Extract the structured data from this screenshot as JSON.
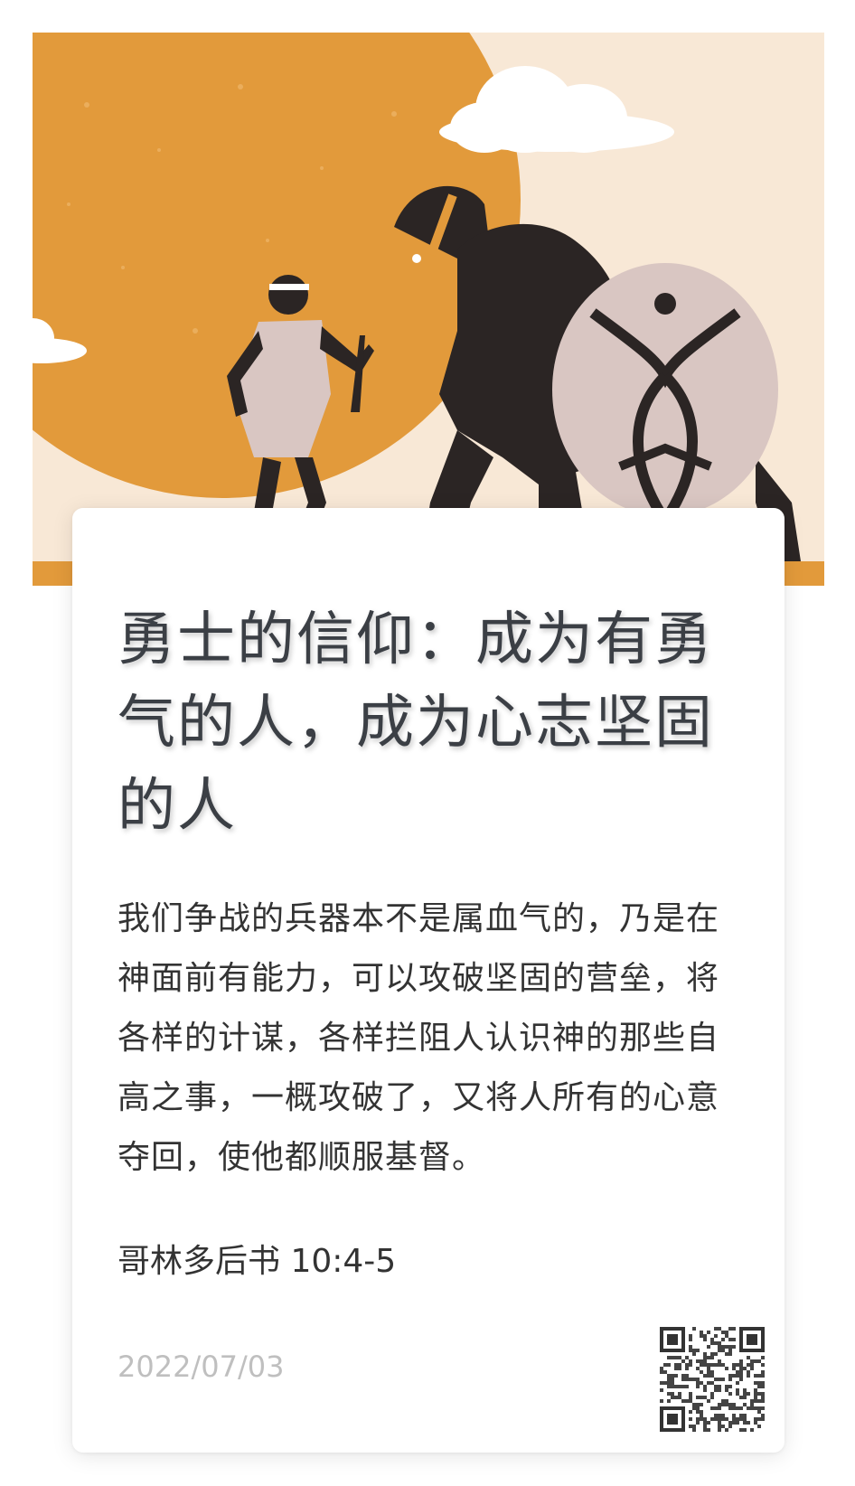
{
  "title": "勇士的信仰：成为有勇气的人，成为心志坚固的人",
  "body": "我们争战的兵器本不是属血气的，乃是在神面前有能力，可以攻破坚固的营垒，将各样的计谋，各样拦阻人认识神的那些自高之事，一概攻破了，又将人所有的心意夺回，使他都顺服基督。",
  "reference": "哥林多后书 10:4-5",
  "date": "2022/07/03",
  "hero": {
    "icon": "david-and-goliath-illustration",
    "colors": {
      "background": "#f8e8d6",
      "sun": "#e29a3b",
      "figure": "#2b2524",
      "shield": "#d9c6c2",
      "cloud": "#ffffff"
    }
  },
  "qr_icon": "qr-code-icon"
}
